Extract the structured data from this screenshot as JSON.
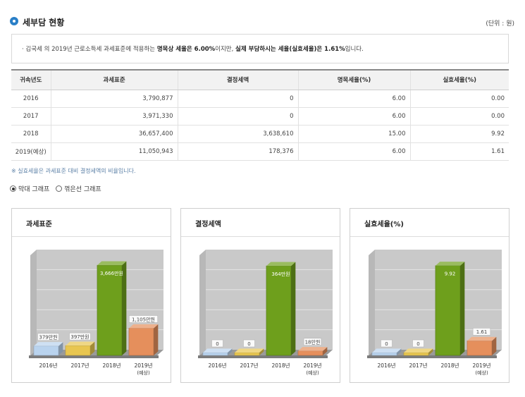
{
  "header": {
    "title": "세부담 현황",
    "unit": "(단위 : 원)"
  },
  "summary": {
    "prefix": "·  김국세 의 2019년 근로소득세 과세표준에 적용하는 ",
    "bold1": "명목상 세율은 6.00%",
    "middle": "이지만, ",
    "bold2": "실제 부담하시는 세율(실효세율)은 1.61%",
    "suffix": "입니다."
  },
  "table": {
    "headers": [
      "귀속년도",
      "과세표준",
      "결정세액",
      "명목세율(%)",
      "실효세율(%)"
    ],
    "rows": [
      [
        "2016",
        "3,790,877",
        "0",
        "6.00",
        "0.00"
      ],
      [
        "2017",
        "3,971,330",
        "0",
        "6.00",
        "0.00"
      ],
      [
        "2018",
        "36,657,400",
        "3,638,610",
        "15.00",
        "9.92"
      ],
      [
        "2019(예상)",
        "11,050,943",
        "178,376",
        "6.00",
        "1.61"
      ]
    ]
  },
  "note": "※ 실효세율은 과세표준 대비 결정세액의 비율입니다.",
  "radios": {
    "bar_label": "막대 그래프",
    "line_label": "꺾은선 그래프",
    "selected": "bar"
  },
  "colors": {
    "c2016": "#b9d3ee",
    "c2017": "#e8c650",
    "c2018": "#6e9f1c",
    "c2019": "#e58f5c",
    "accent": "#2a7fc7"
  },
  "chart_data": [
    {
      "type": "bar",
      "title": "과세표준",
      "categories": [
        "2016년",
        "2017년",
        "2018년",
        "2019년"
      ],
      "category_sub": [
        "",
        "",
        "",
        "(예상)"
      ],
      "values": [
        379,
        397,
        3666,
        1105
      ],
      "data_labels": [
        "379만원",
        "397만원",
        "3,666만원",
        "1,105만원"
      ],
      "ylim": [
        0,
        3900
      ],
      "grid": true
    },
    {
      "type": "bar",
      "title": "결정세액",
      "categories": [
        "2016년",
        "2017년",
        "2018년",
        "2019년"
      ],
      "category_sub": [
        "",
        "",
        "",
        "(예상)"
      ],
      "values": [
        0,
        0,
        364,
        18
      ],
      "data_labels": [
        "0",
        "0",
        "364만원",
        "18만원"
      ],
      "ylim": [
        0,
        390
      ],
      "grid": true
    },
    {
      "type": "bar",
      "title": "실효세율(%)",
      "categories": [
        "2016년",
        "2017년",
        "2018년",
        "2019년"
      ],
      "category_sub": [
        "",
        "",
        "",
        "(예상)"
      ],
      "values": [
        0,
        0,
        9.92,
        1.61
      ],
      "data_labels": [
        "0",
        "0",
        "9.92",
        "1.61"
      ],
      "ylim": [
        0,
        10.6
      ],
      "grid": true
    }
  ]
}
